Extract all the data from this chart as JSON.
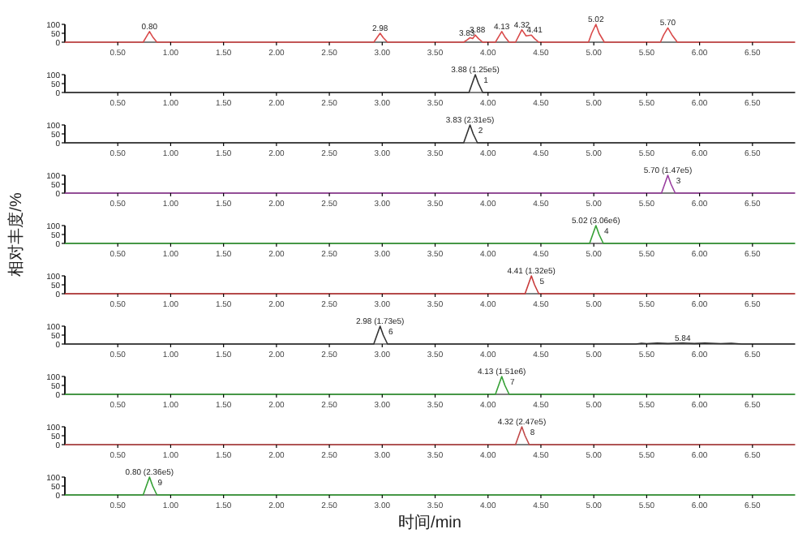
{
  "chart_data": [
    {
      "type": "line",
      "xlim": [
        0,
        6.9
      ],
      "ylim": [
        0,
        100
      ],
      "yticks": [
        0,
        50,
        100
      ],
      "xticks": [
        {
          "value": 0.5,
          "label": "0.50"
        },
        {
          "value": 1,
          "label": "1.00"
        },
        {
          "value": 1.5,
          "label": "1.50"
        },
        {
          "value": 2,
          "label": "2.00"
        },
        {
          "value": 2.5,
          "label": "2.50"
        },
        {
          "value": 3,
          "label": "3.00"
        },
        {
          "value": 3.5,
          "label": "3.50"
        },
        {
          "value": 4,
          "label": "4.00"
        },
        {
          "value": 4.5,
          "label": "4.50"
        },
        {
          "value": 5,
          "label": "5.00"
        },
        {
          "value": 5.5,
          "label": "5.50"
        },
        {
          "value": 6,
          "label": "6.00"
        },
        {
          "value": 6.5,
          "label": "6.50"
        }
      ],
      "series": [
        {
          "color": "#d94a4a",
          "x": [
            0,
            0.74,
            0.77,
            0.8,
            0.83,
            0.87,
            2.92,
            2.95,
            2.98,
            3.01,
            3.05,
            3.77,
            3.8,
            3.83,
            3.855,
            3.88,
            3.91,
            3.95,
            4.07,
            4.1,
            4.13,
            4.16,
            4.2,
            4.26,
            4.29,
            4.32,
            4.36,
            4.41,
            4.44,
            4.48,
            4.95,
            4.98,
            5.02,
            5.05,
            5.1,
            5.63,
            5.66,
            5.7,
            5.74,
            5.79,
            6.9
          ],
          "values": [
            0,
            0,
            30,
            60,
            30,
            0,
            0,
            25,
            50,
            25,
            0,
            0,
            12,
            25,
            20,
            40,
            20,
            0,
            0,
            30,
            60,
            30,
            0,
            0,
            35,
            70,
            35,
            40,
            20,
            0,
            0,
            50,
            100,
            50,
            0,
            0,
            40,
            80,
            40,
            0,
            0
          ]
        }
      ],
      "annotations": [
        {
          "text": "0.80",
          "x": 0.8,
          "y": 60
        },
        {
          "text": "2.98",
          "x": 2.98,
          "y": 50
        },
        {
          "text": "3.83",
          "x": 3.8,
          "y": 25
        },
        {
          "text": "3.88",
          "x": 3.9,
          "y": 40
        },
        {
          "text": "4.13",
          "x": 4.13,
          "y": 60
        },
        {
          "text": "4.32",
          "x": 4.32,
          "y": 70
        },
        {
          "text": "4.41",
          "x": 4.44,
          "y": 40
        },
        {
          "text": "5.02",
          "x": 5.02,
          "y": 100
        },
        {
          "text": "5.70",
          "x": 5.7,
          "y": 80
        }
      ]
    },
    {
      "type": "line",
      "xlim": [
        0,
        6.9
      ],
      "ylim": [
        0,
        100
      ],
      "yticks": [
        0,
        50,
        100
      ],
      "xticks": [
        {
          "value": 0.5,
          "label": "0.50"
        },
        {
          "value": 1,
          "label": "1.00"
        },
        {
          "value": 1.5,
          "label": "1.50"
        },
        {
          "value": 2,
          "label": "2.00"
        },
        {
          "value": 2.5,
          "label": "2.50"
        },
        {
          "value": 3,
          "label": "3.00"
        },
        {
          "value": 3.5,
          "label": "3.50"
        },
        {
          "value": 4,
          "label": "4.00"
        },
        {
          "value": 4.5,
          "label": "4.50"
        },
        {
          "value": 5,
          "label": "5.00"
        },
        {
          "value": 5.5,
          "label": "5.50"
        },
        {
          "value": 6,
          "label": "6.00"
        },
        {
          "value": 6.5,
          "label": "6.50"
        }
      ],
      "series": [
        {
          "color": "#333333",
          "x": [
            0,
            3.82,
            3.85,
            3.88,
            3.91,
            3.95,
            6.9
          ],
          "values": [
            0,
            0,
            50,
            100,
            50,
            0,
            0
          ]
        }
      ],
      "annotations": [
        {
          "text": "3.88 (1.25e5)",
          "x": 3.88,
          "y": 100
        },
        {
          "text": "1",
          "x": 3.98,
          "y": 40
        }
      ]
    },
    {
      "type": "line",
      "xlim": [
        0,
        6.9
      ],
      "ylim": [
        0,
        100
      ],
      "yticks": [
        0,
        50,
        100
      ],
      "xticks": [
        {
          "value": 0.5,
          "label": "0.50"
        },
        {
          "value": 1,
          "label": "1.00"
        },
        {
          "value": 1.5,
          "label": "1.50"
        },
        {
          "value": 2,
          "label": "2.00"
        },
        {
          "value": 2.5,
          "label": "2.50"
        },
        {
          "value": 3,
          "label": "3.00"
        },
        {
          "value": 3.5,
          "label": "3.50"
        },
        {
          "value": 4,
          "label": "4.00"
        },
        {
          "value": 4.5,
          "label": "4.50"
        },
        {
          "value": 5,
          "label": "5.00"
        },
        {
          "value": 5.5,
          "label": "5.50"
        },
        {
          "value": 6,
          "label": "6.00"
        },
        {
          "value": 6.5,
          "label": "6.50"
        }
      ],
      "series": [
        {
          "color": "#333333",
          "x": [
            0,
            3.77,
            3.8,
            3.83,
            3.86,
            3.9,
            6.9
          ],
          "values": [
            0,
            0,
            50,
            100,
            50,
            0,
            0
          ]
        }
      ],
      "annotations": [
        {
          "text": "3.83 (2.31e5)",
          "x": 3.83,
          "y": 100
        },
        {
          "text": "2",
          "x": 3.93,
          "y": 40
        }
      ]
    },
    {
      "type": "line",
      "xlim": [
        0,
        6.9
      ],
      "ylim": [
        0,
        100
      ],
      "yticks": [
        0,
        50,
        100
      ],
      "xticks": [
        {
          "value": 0.5,
          "label": "0.50"
        },
        {
          "value": 1,
          "label": "1.00"
        },
        {
          "value": 1.5,
          "label": "1.50"
        },
        {
          "value": 2,
          "label": "2.00"
        },
        {
          "value": 2.5,
          "label": "2.50"
        },
        {
          "value": 3,
          "label": "3.00"
        },
        {
          "value": 3.5,
          "label": "3.50"
        },
        {
          "value": 4,
          "label": "4.00"
        },
        {
          "value": 4.5,
          "label": "4.50"
        },
        {
          "value": 5,
          "label": "5.00"
        },
        {
          "value": 5.5,
          "label": "5.50"
        },
        {
          "value": 6,
          "label": "6.00"
        },
        {
          "value": 6.5,
          "label": "6.50"
        }
      ],
      "series": [
        {
          "color": "#9a3fa0",
          "x": [
            0,
            5.64,
            5.67,
            5.7,
            5.73,
            5.77,
            6.9
          ],
          "values": [
            0,
            0,
            50,
            100,
            50,
            0,
            0
          ]
        }
      ],
      "annotations": [
        {
          "text": "5.70 (1.47e5)",
          "x": 5.7,
          "y": 100
        },
        {
          "text": "3",
          "x": 5.8,
          "y": 40
        }
      ]
    },
    {
      "type": "line",
      "xlim": [
        0,
        6.9
      ],
      "ylim": [
        0,
        100
      ],
      "yticks": [
        0,
        50,
        100
      ],
      "ylabel": "相对丰度/%",
      "xticks": [
        {
          "value": 0.5,
          "label": "0.50"
        },
        {
          "value": 1,
          "label": "1.00"
        },
        {
          "value": 1.5,
          "label": "1.50"
        },
        {
          "value": 2,
          "label": "2.00"
        },
        {
          "value": 2.5,
          "label": "2.50"
        },
        {
          "value": 3,
          "label": "3.00"
        },
        {
          "value": 3.5,
          "label": "3.50"
        },
        {
          "value": 4,
          "label": "4.00"
        },
        {
          "value": 4.5,
          "label": "4.50"
        },
        {
          "value": 5,
          "label": "5.00"
        },
        {
          "value": 5.5,
          "label": "5.50"
        },
        {
          "value": 6,
          "label": "6.00"
        },
        {
          "value": 6.5,
          "label": "6.50"
        }
      ],
      "series": [
        {
          "color": "#35a035",
          "x": [
            0,
            4.96,
            4.99,
            5.02,
            5.05,
            5.09,
            6.9
          ],
          "values": [
            0,
            0,
            50,
            100,
            50,
            0,
            0
          ]
        }
      ],
      "annotations": [
        {
          "text": "5.02 (3.06e6)",
          "x": 5.02,
          "y": 100
        },
        {
          "text": "4",
          "x": 5.12,
          "y": 40
        }
      ]
    },
    {
      "type": "line",
      "xlim": [
        0,
        6.9
      ],
      "ylim": [
        0,
        100
      ],
      "yticks": [
        0,
        50,
        100
      ],
      "xticks": [
        {
          "value": 0.5,
          "label": "0.50"
        },
        {
          "value": 1,
          "label": "1.00"
        },
        {
          "value": 1.5,
          "label": "1.50"
        },
        {
          "value": 2,
          "label": "2.00"
        },
        {
          "value": 2.5,
          "label": "2.50"
        },
        {
          "value": 3,
          "label": "3.00"
        },
        {
          "value": 3.5,
          "label": "3.50"
        },
        {
          "value": 4,
          "label": "4.00"
        },
        {
          "value": 4.5,
          "label": "4.50"
        },
        {
          "value": 5,
          "label": "5.00"
        },
        {
          "value": 5.5,
          "label": "5.50"
        },
        {
          "value": 6,
          "label": "6.00"
        },
        {
          "value": 6.5,
          "label": "6.50"
        }
      ],
      "series": [
        {
          "color": "#c83a3a",
          "x": [
            0,
            4.35,
            4.38,
            4.41,
            4.44,
            4.48,
            6.9
          ],
          "values": [
            0,
            0,
            50,
            100,
            50,
            0,
            0
          ]
        }
      ],
      "annotations": [
        {
          "text": "4.41 (1.32e5)",
          "x": 4.41,
          "y": 100
        },
        {
          "text": "5",
          "x": 4.51,
          "y": 40
        }
      ]
    },
    {
      "type": "line",
      "xlim": [
        0,
        6.9
      ],
      "ylim": [
        0,
        100
      ],
      "yticks": [
        0,
        50,
        100
      ],
      "xticks": [
        {
          "value": 0.5,
          "label": "0.50"
        },
        {
          "value": 1,
          "label": "1.00"
        },
        {
          "value": 1.5,
          "label": "1.50"
        },
        {
          "value": 2,
          "label": "2.00"
        },
        {
          "value": 2.5,
          "label": "2.50"
        },
        {
          "value": 3,
          "label": "3.00"
        },
        {
          "value": 3.5,
          "label": "3.50"
        },
        {
          "value": 4,
          "label": "4.00"
        },
        {
          "value": 4.5,
          "label": "4.50"
        },
        {
          "value": 5,
          "label": "5.00"
        },
        {
          "value": 5.5,
          "label": "5.50"
        },
        {
          "value": 6,
          "label": "6.00"
        },
        {
          "value": 6.5,
          "label": "6.50"
        }
      ],
      "series": [
        {
          "color": "#333333",
          "x": [
            0,
            2.92,
            2.95,
            2.98,
            3.01,
            3.05,
            5.4,
            5.45,
            5.5,
            5.6,
            5.7,
            5.84,
            5.95,
            6.05,
            6.2,
            6.3,
            6.4,
            6.9
          ],
          "values": [
            0,
            0,
            50,
            100,
            50,
            0,
            0,
            4,
            2,
            5,
            3,
            6,
            3,
            5,
            2,
            4,
            0,
            0
          ]
        }
      ],
      "annotations": [
        {
          "text": "2.98 (1.73e5)",
          "x": 2.98,
          "y": 100
        },
        {
          "text": "6",
          "x": 3.08,
          "y": 40
        },
        {
          "text": "5.84",
          "x": 5.84,
          "y": 6
        }
      ]
    },
    {
      "type": "line",
      "xlim": [
        0,
        6.9
      ],
      "ylim": [
        0,
        100
      ],
      "yticks": [
        0,
        50,
        100
      ],
      "xticks": [
        {
          "value": 0.5,
          "label": "0.50"
        },
        {
          "value": 1,
          "label": "1.00"
        },
        {
          "value": 1.5,
          "label": "1.50"
        },
        {
          "value": 2,
          "label": "2.00"
        },
        {
          "value": 2.5,
          "label": "2.50"
        },
        {
          "value": 3,
          "label": "3.00"
        },
        {
          "value": 3.5,
          "label": "3.50"
        },
        {
          "value": 4,
          "label": "4.00"
        },
        {
          "value": 4.5,
          "label": "4.50"
        },
        {
          "value": 5,
          "label": "5.00"
        },
        {
          "value": 5.5,
          "label": "5.50"
        },
        {
          "value": 6,
          "label": "6.00"
        },
        {
          "value": 6.5,
          "label": "6.50"
        }
      ],
      "series": [
        {
          "color": "#35a035",
          "x": [
            0,
            4.07,
            4.1,
            4.13,
            4.16,
            4.2,
            6.9
          ],
          "values": [
            0,
            0,
            50,
            100,
            50,
            0,
            0
          ]
        }
      ],
      "annotations": [
        {
          "text": "4.13 (1.51e6)",
          "x": 4.13,
          "y": 100
        },
        {
          "text": "7",
          "x": 4.23,
          "y": 40
        }
      ]
    },
    {
      "type": "line",
      "xlim": [
        0,
        6.9
      ],
      "ylim": [
        0,
        100
      ],
      "yticks": [
        0,
        50,
        100
      ],
      "xticks": [
        {
          "value": 0.5,
          "label": "0.50"
        },
        {
          "value": 1,
          "label": "1.00"
        },
        {
          "value": 1.5,
          "label": "1.50"
        },
        {
          "value": 2,
          "label": "2.00"
        },
        {
          "value": 2.5,
          "label": "2.50"
        },
        {
          "value": 3,
          "label": "3.00"
        },
        {
          "value": 3.5,
          "label": "3.50"
        },
        {
          "value": 4,
          "label": "4.00"
        },
        {
          "value": 4.5,
          "label": "4.50"
        },
        {
          "value": 5,
          "label": "5.00"
        },
        {
          "value": 5.5,
          "label": "5.50"
        },
        {
          "value": 6,
          "label": "6.00"
        },
        {
          "value": 6.5,
          "label": "6.50"
        }
      ],
      "series": [
        {
          "color": "#c04848",
          "x": [
            0,
            4.26,
            4.29,
            4.32,
            4.35,
            4.39,
            6.9
          ],
          "values": [
            0,
            0,
            50,
            100,
            50,
            0,
            0
          ]
        }
      ],
      "annotations": [
        {
          "text": "4.32 (2.47e5)",
          "x": 4.32,
          "y": 100
        },
        {
          "text": "8",
          "x": 4.42,
          "y": 40
        }
      ]
    },
    {
      "type": "line",
      "xlim": [
        0,
        6.9
      ],
      "ylim": [
        0,
        100
      ],
      "yticks": [
        0,
        50,
        100
      ],
      "xlabel": "时间/min",
      "xticks": [
        {
          "value": 0.5,
          "label": "0.50"
        },
        {
          "value": 1,
          "label": "1.00"
        },
        {
          "value": 1.5,
          "label": "1.50"
        },
        {
          "value": 2,
          "label": "2.00"
        },
        {
          "value": 2.5,
          "label": "2.50"
        },
        {
          "value": 3,
          "label": "3.00"
        },
        {
          "value": 3.5,
          "label": "3.50"
        },
        {
          "value": 4,
          "label": "4.00"
        },
        {
          "value": 4.5,
          "label": "4.50"
        },
        {
          "value": 5,
          "label": "5.00"
        },
        {
          "value": 5.5,
          "label": "5.50"
        },
        {
          "value": 6,
          "label": "6.00"
        },
        {
          "value": 6.5,
          "label": "6.50"
        }
      ],
      "series": [
        {
          "color": "#35a035",
          "x": [
            0,
            0.74,
            0.77,
            0.8,
            0.83,
            0.87,
            6.9
          ],
          "values": [
            0,
            0,
            50,
            100,
            50,
            0,
            0
          ]
        }
      ],
      "annotations": [
        {
          "text": "0.80 (2.36e5)",
          "x": 0.8,
          "y": 100
        },
        {
          "text": "9",
          "x": 0.9,
          "y": 40
        }
      ]
    }
  ]
}
